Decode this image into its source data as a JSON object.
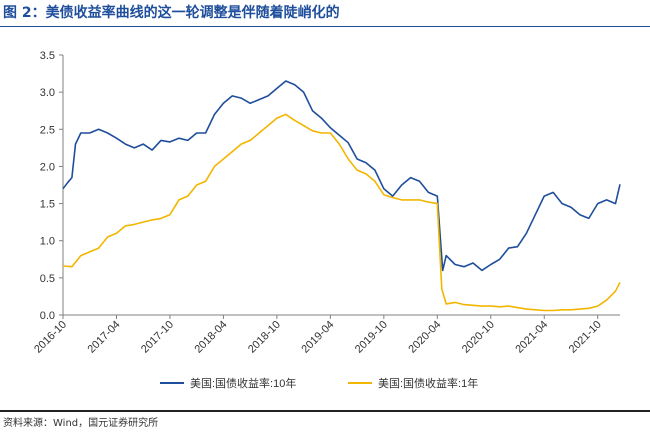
{
  "header": {
    "title": "图 2：美债收益率曲线的这一轮调整是伴随着陡峭化的"
  },
  "footer": {
    "source": "资料来源：Wind，国元证券研究所"
  },
  "colors": {
    "accent": "#1f4e9c",
    "series_10y": "#1f4e9c",
    "series_1y": "#f2b600"
  },
  "chart_data": {
    "type": "line",
    "title": "",
    "xlabel": "",
    "ylabel": "",
    "ylim": [
      0,
      3.5
    ],
    "yticks": [
      "0.0",
      "0.5",
      "1.0",
      "1.5",
      "2.0",
      "2.5",
      "3.0",
      "3.5"
    ],
    "xlim": [
      0,
      62.5
    ],
    "xticks": [
      {
        "label": "2016-10",
        "x": 0
      },
      {
        "label": "2017-04",
        "x": 6
      },
      {
        "label": "2017-10",
        "x": 12
      },
      {
        "label": "2018-04",
        "x": 18
      },
      {
        "label": "2018-10",
        "x": 24
      },
      {
        "label": "2019-04",
        "x": 30
      },
      {
        "label": "2019-10",
        "x": 36
      },
      {
        "label": "2020-04",
        "x": 42
      },
      {
        "label": "2020-10",
        "x": 48
      },
      {
        "label": "2021-04",
        "x": 54
      },
      {
        "label": "2021-10",
        "x": 60
      }
    ],
    "legend_position": "bottom",
    "series": [
      {
        "name": "美国:国债收益率:10年",
        "color": "#1f4e9c",
        "points": [
          [
            0,
            1.7
          ],
          [
            0.5,
            1.78
          ],
          [
            1,
            1.85
          ],
          [
            1.4,
            2.3
          ],
          [
            2,
            2.45
          ],
          [
            3,
            2.45
          ],
          [
            4,
            2.5
          ],
          [
            5,
            2.45
          ],
          [
            6,
            2.38
          ],
          [
            7,
            2.3
          ],
          [
            8,
            2.25
          ],
          [
            9,
            2.3
          ],
          [
            10,
            2.22
          ],
          [
            11,
            2.35
          ],
          [
            12,
            2.33
          ],
          [
            13,
            2.38
          ],
          [
            14,
            2.35
          ],
          [
            15,
            2.45
          ],
          [
            16,
            2.45
          ],
          [
            17,
            2.7
          ],
          [
            18,
            2.85
          ],
          [
            19,
            2.95
          ],
          [
            20,
            2.92
          ],
          [
            21,
            2.85
          ],
          [
            22,
            2.9
          ],
          [
            23,
            2.95
          ],
          [
            24,
            3.05
          ],
          [
            25,
            3.15
          ],
          [
            26,
            3.1
          ],
          [
            27,
            3.0
          ],
          [
            28,
            2.75
          ],
          [
            29,
            2.65
          ],
          [
            30,
            2.52
          ],
          [
            31,
            2.42
          ],
          [
            32,
            2.32
          ],
          [
            33,
            2.1
          ],
          [
            34,
            2.05
          ],
          [
            35,
            1.95
          ],
          [
            36,
            1.7
          ],
          [
            37,
            1.6
          ],
          [
            38,
            1.75
          ],
          [
            39,
            1.85
          ],
          [
            40,
            1.8
          ],
          [
            41,
            1.65
          ],
          [
            42,
            1.6
          ],
          [
            42.6,
            0.6
          ],
          [
            43,
            0.8
          ],
          [
            44,
            0.68
          ],
          [
            45,
            0.65
          ],
          [
            46,
            0.7
          ],
          [
            47,
            0.6
          ],
          [
            48,
            0.68
          ],
          [
            49,
            0.75
          ],
          [
            50,
            0.9
          ],
          [
            51,
            0.92
          ],
          [
            52,
            1.1
          ],
          [
            53,
            1.35
          ],
          [
            54,
            1.6
          ],
          [
            55,
            1.65
          ],
          [
            56,
            1.5
          ],
          [
            57,
            1.45
          ],
          [
            58,
            1.35
          ],
          [
            59,
            1.3
          ],
          [
            60,
            1.5
          ],
          [
            61,
            1.55
          ],
          [
            62,
            1.5
          ],
          [
            62.5,
            1.76
          ]
        ]
      },
      {
        "name": "美国:国债收益率:1年",
        "color": "#f2b600",
        "points": [
          [
            0,
            0.66
          ],
          [
            1,
            0.65
          ],
          [
            2,
            0.8
          ],
          [
            3,
            0.85
          ],
          [
            4,
            0.9
          ],
          [
            5,
            1.05
          ],
          [
            6,
            1.1
          ],
          [
            7,
            1.2
          ],
          [
            8,
            1.22
          ],
          [
            9,
            1.25
          ],
          [
            10,
            1.28
          ],
          [
            11,
            1.3
          ],
          [
            12,
            1.35
          ],
          [
            13,
            1.55
          ],
          [
            14,
            1.6
          ],
          [
            15,
            1.75
          ],
          [
            16,
            1.8
          ],
          [
            17,
            2.0
          ],
          [
            18,
            2.1
          ],
          [
            19,
            2.2
          ],
          [
            20,
            2.3
          ],
          [
            21,
            2.35
          ],
          [
            22,
            2.45
          ],
          [
            23,
            2.55
          ],
          [
            24,
            2.65
          ],
          [
            25,
            2.7
          ],
          [
            26,
            2.62
          ],
          [
            27,
            2.55
          ],
          [
            28,
            2.48
          ],
          [
            29,
            2.45
          ],
          [
            30,
            2.45
          ],
          [
            31,
            2.3
          ],
          [
            32,
            2.1
          ],
          [
            33,
            1.95
          ],
          [
            34,
            1.9
          ],
          [
            35,
            1.8
          ],
          [
            36,
            1.62
          ],
          [
            37,
            1.58
          ],
          [
            38,
            1.55
          ],
          [
            39,
            1.55
          ],
          [
            40,
            1.55
          ],
          [
            41,
            1.52
          ],
          [
            42,
            1.5
          ],
          [
            42.5,
            0.35
          ],
          [
            43,
            0.15
          ],
          [
            44,
            0.17
          ],
          [
            45,
            0.14
          ],
          [
            46,
            0.13
          ],
          [
            47,
            0.12
          ],
          [
            48,
            0.12
          ],
          [
            49,
            0.11
          ],
          [
            50,
            0.12
          ],
          [
            51,
            0.1
          ],
          [
            52,
            0.08
          ],
          [
            53,
            0.07
          ],
          [
            54,
            0.06
          ],
          [
            55,
            0.06
          ],
          [
            56,
            0.07
          ],
          [
            57,
            0.07
          ],
          [
            58,
            0.08
          ],
          [
            59,
            0.09
          ],
          [
            60,
            0.12
          ],
          [
            61,
            0.2
          ],
          [
            62,
            0.32
          ],
          [
            62.5,
            0.44
          ]
        ]
      }
    ]
  }
}
